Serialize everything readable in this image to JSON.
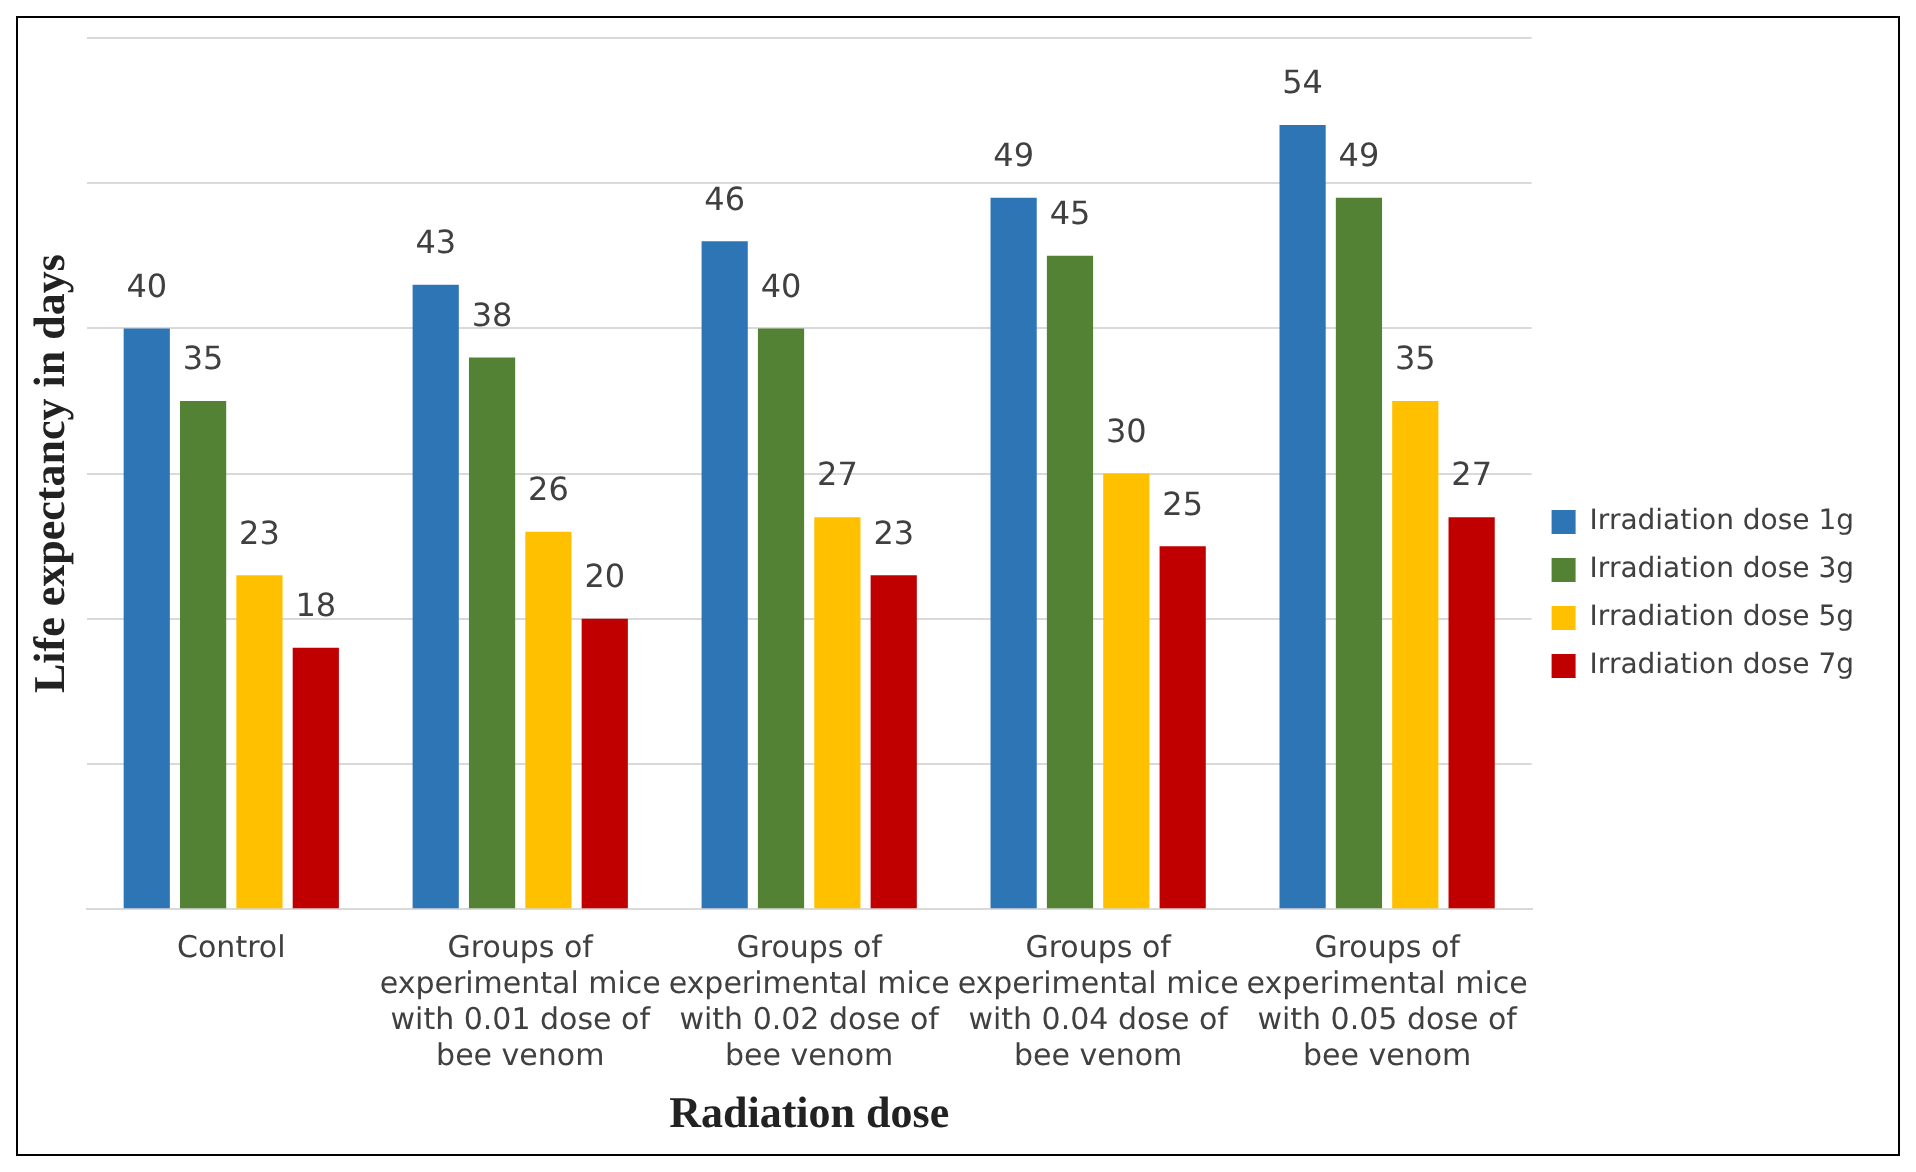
{
  "chart_data": {
    "type": "bar",
    "xlabel": "Radiation dose",
    "ylabel": "Life expectancy in days",
    "categories": [
      "Control",
      "Groups of experimental mice with 0.01 dose of bee venom",
      "Groups of experimental mice with 0.02 dose of bee venom",
      "Groups of experimental mice with 0.04 dose of bee venom",
      "Groups of experimental mice with 0.05 dose of bee venom"
    ],
    "series": [
      {
        "name": "Irradiation dose 1g",
        "color": "#2e75b6",
        "values": [
          40,
          43,
          46,
          49,
          54
        ]
      },
      {
        "name": "Irradiation dose 3g",
        "color": "#548235",
        "values": [
          35,
          38,
          40,
          45,
          49
        ]
      },
      {
        "name": "Irradiation dose 5g",
        "color": "#ffc000",
        "values": [
          23,
          26,
          27,
          30,
          35
        ]
      },
      {
        "name": "Irradiation dose 7g",
        "color": "#c00000",
        "values": [
          18,
          20,
          23,
          25,
          27
        ]
      }
    ],
    "ylim": [
      0,
      60
    ],
    "yticks": [
      {
        "value": 0,
        "label": null
      },
      {
        "value": 10,
        "label": null
      },
      {
        "value": 20,
        "label": null
      },
      {
        "value": 30,
        "label": null
      },
      {
        "value": 40,
        "label": null
      },
      {
        "value": 50,
        "label": null
      },
      {
        "value": 60,
        "label": null
      }
    ],
    "grid": "y",
    "legend": "right",
    "data_labels": true,
    "tick_labels": "x"
  }
}
